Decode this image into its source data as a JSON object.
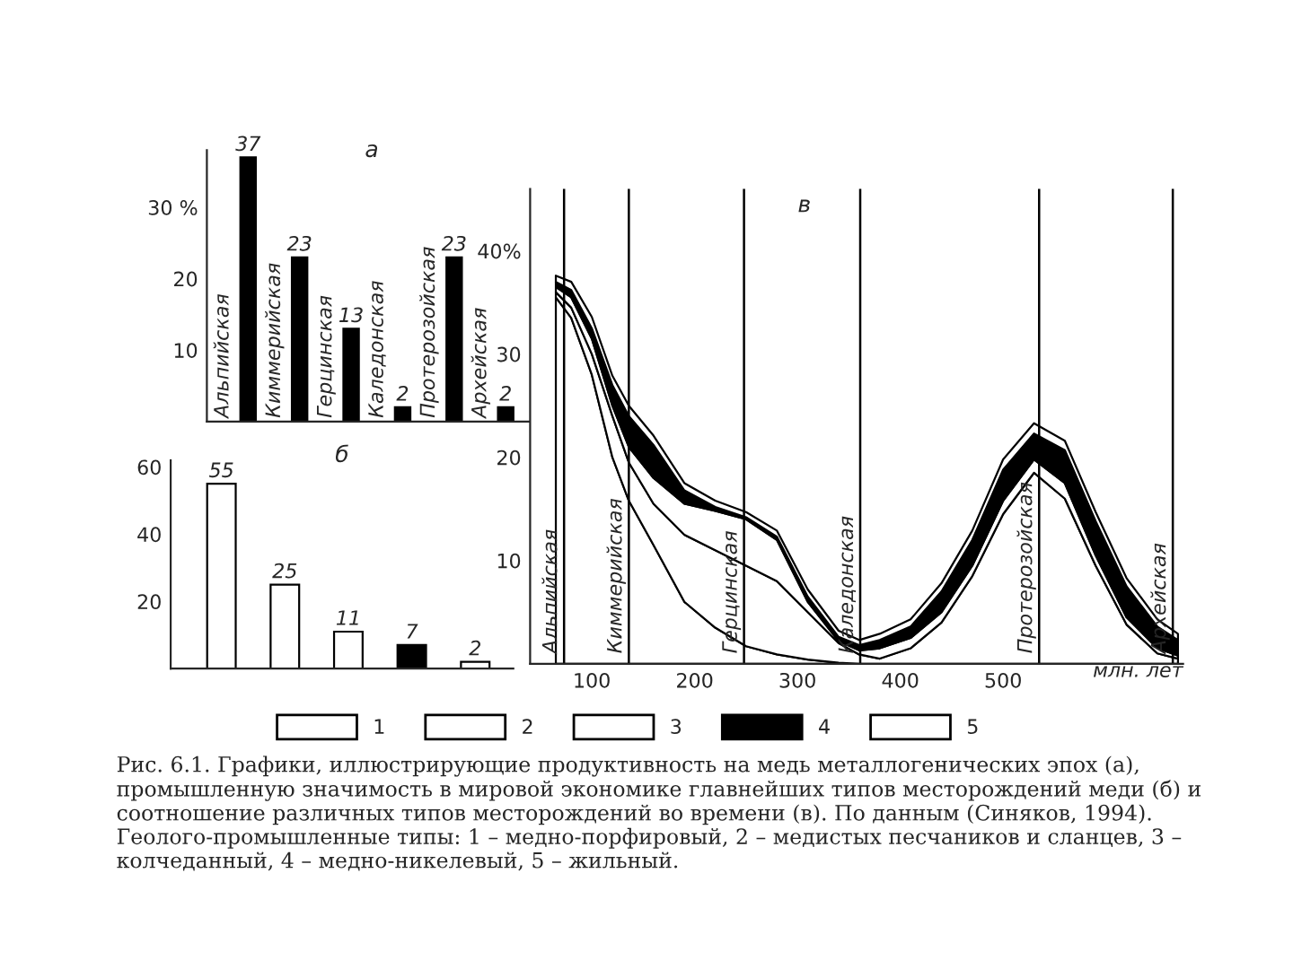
{
  "chart_data": [
    {
      "type": "bar",
      "title": "а",
      "categories": [
        "Альпийская",
        "Киммерийская",
        "Герцинская",
        "Каледонская",
        "Протерозойская",
        "Архейская"
      ],
      "values": [
        37,
        23,
        13,
        2,
        23,
        2
      ],
      "color": "#000000",
      "ylim": [
        0,
        38
      ],
      "yticks": [
        10,
        20,
        {
          "value": 30,
          "label": "30 %"
        }
      ],
      "data_labels": true,
      "grid": false
    },
    {
      "type": "bar",
      "title": "б",
      "categories": [
        null,
        null,
        null,
        null,
        null
      ],
      "values": [
        55,
        25,
        11,
        7,
        2
      ],
      "colors": [
        "#ffffff",
        "#ffffff",
        "#ffffff",
        "#000000",
        "#ffffff"
      ],
      "ylim": [
        0,
        62
      ],
      "yticks": [
        20,
        40,
        60
      ],
      "data_labels": true,
      "grid": false
    },
    {
      "type": "area",
      "title": "в",
      "stacked": true,
      "xlabel": "млн. лет",
      "x": [
        65,
        80,
        100,
        120,
        136,
        160,
        190,
        220,
        250,
        280,
        310,
        340,
        360,
        380,
        410,
        440,
        470,
        500,
        530,
        560,
        590,
        620,
        650,
        670
      ],
      "series": [
        {
          "name": "1",
          "color": "#ffffff",
          "values": [
            35.5,
            33.5,
            28,
            20,
            15.8,
            11.5,
            6,
            3.5,
            1.7,
            0.9,
            0.4,
            0.1,
            0,
            0,
            0,
            0,
            0,
            0,
            0,
            0,
            0,
            0,
            0,
            0
          ]
        },
        {
          "name": "2",
          "color": "#ffffff",
          "values": [
            0.5,
            1,
            2,
            4,
            3.7,
            4,
            6.5,
            7.5,
            7.8,
            7.1,
            4.6,
            1.9,
            0.9,
            0.5,
            1.5,
            4,
            8.5,
            14.5,
            18.5,
            16,
            9.5,
            3.8,
            1,
            0.5
          ]
        },
        {
          "name": "3",
          "color": "#ffffff",
          "values": [
            0.5,
            1,
            1.5,
            1,
            1.5,
            2.5,
            3,
            3.8,
            4.5,
            4,
            1,
            0.2,
            0.4,
            1,
            1,
            1,
            1,
            1.3,
            1.3,
            1.5,
            1,
            0.7,
            0.5,
            0.3
          ]
        },
        {
          "name": "4",
          "color": "#000000",
          "values": [
            0.5,
            0.7,
            1,
            2,
            3,
            3.2,
            1.3,
            0.4,
            0.2,
            0.3,
            0.5,
            0.4,
            0.5,
            0.8,
            1.1,
            2,
            2.5,
            3,
            2.5,
            3.2,
            3.3,
            3,
            2.1,
            1.5
          ]
        },
        {
          "name": "5",
          "color": "#ffffff",
          "values": [
            0.6,
            0.8,
            1.1,
            0.9,
            1,
            0.9,
            0.7,
            0.6,
            0.5,
            0.6,
            0.7,
            0.6,
            0.5,
            0.6,
            0.7,
            0.8,
            0.9,
            1,
            1,
            0.9,
            0.9,
            0.8,
            0.7,
            0.6
          ]
        }
      ],
      "xlim": [
        40,
        675
      ],
      "xticks": [
        100,
        200,
        300,
        400,
        500
      ],
      "ylim": [
        0,
        46
      ],
      "yticks": [
        10,
        20,
        30,
        {
          "value": 40,
          "label": "40%"
        }
      ],
      "ref_lines": [
        {
          "axis": "x",
          "value": 73,
          "label": "Альпийская"
        },
        {
          "axis": "x",
          "value": 136,
          "label": "Киммерийская"
        },
        {
          "axis": "x",
          "value": 248,
          "label": "Герцинская"
        },
        {
          "axis": "x",
          "value": 361,
          "label": "Каледонская"
        },
        {
          "axis": "x",
          "value": 535,
          "label": "Протерозойская"
        },
        {
          "axis": "x",
          "value": 665,
          "label": "Архейская"
        }
      ],
      "legend": "bottom",
      "grid": false,
      "annotations": [
        "Рис. 6.1. Графики, иллюстрирующие продуктивность на медь металлогенических эпох (а), промышленную значимость в мировой экономике главнейших типов месторождений меди (б) и соотношение различных типов месторождений во времени (в). По данным (Синяков, 1994). Геолого-промышленные типы: 1 – медно-порфировый, 2 – медистых песчаников и сланцев, 3 – колчеданный, 4 – медно-никелевый, 5 – жильный."
      ]
    }
  ]
}
